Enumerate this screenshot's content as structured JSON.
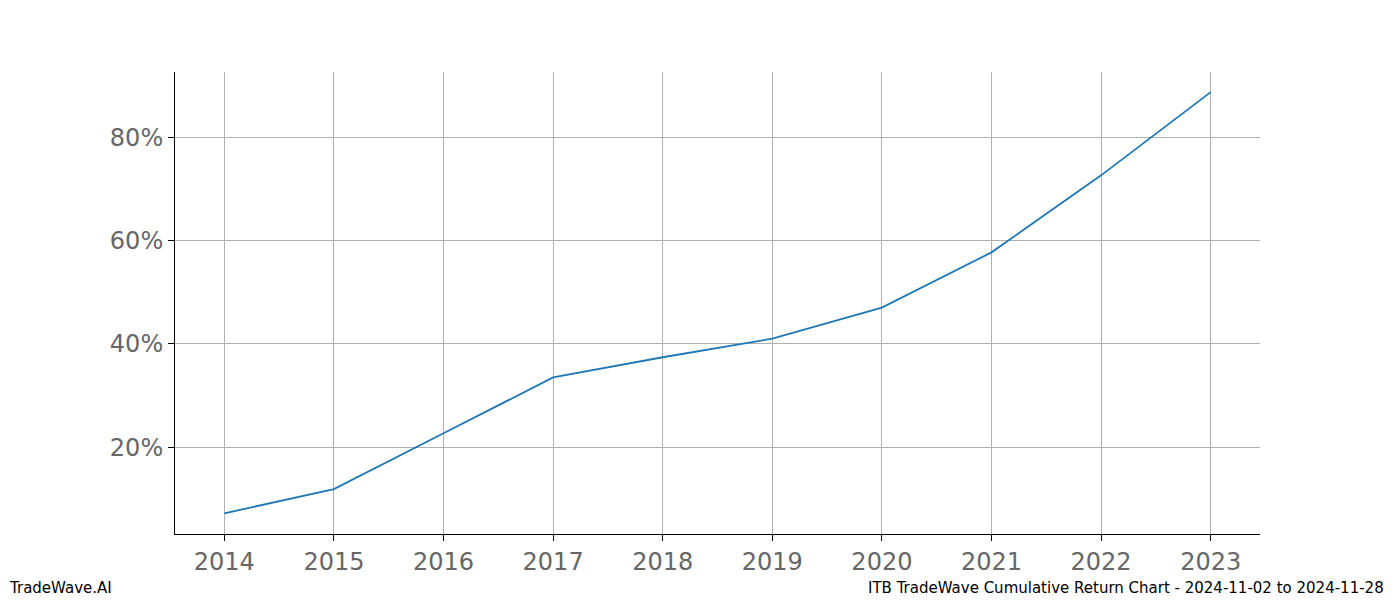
{
  "chart_data": {
    "type": "line",
    "x": [
      2014,
      2015,
      2016,
      2017,
      2018,
      2019,
      2020,
      2021,
      2022,
      2023
    ],
    "values": [
      7.2,
      11.9,
      22.7,
      33.5,
      37.4,
      41.0,
      47.0,
      57.7,
      72.6,
      88.7
    ],
    "color": "#1f77b4",
    "xlim": [
      2013.55,
      2023.45
    ],
    "xticks": [
      2014,
      2015,
      2016,
      2017,
      2018,
      2019,
      2020,
      2021,
      2022,
      2023
    ],
    "ylim": [
      3.2,
      92.6
    ],
    "yticks": [
      {
        "value": 20,
        "label": "20%"
      },
      {
        "value": 40,
        "label": "40%"
      },
      {
        "value": 60,
        "label": "60%"
      },
      {
        "value": 80,
        "label": "80%"
      }
    ],
    "grid": true,
    "annotations": [
      "TradeWave.AI",
      "ITB TradeWave Cumulative Return Chart - 2024-11-02 to 2024-11-28"
    ]
  }
}
